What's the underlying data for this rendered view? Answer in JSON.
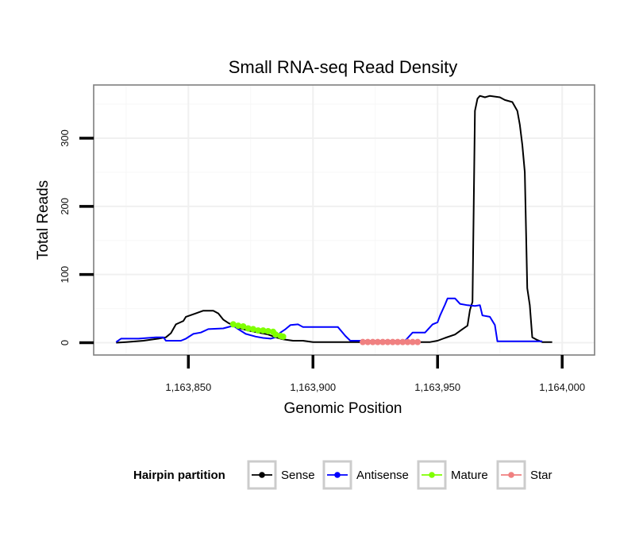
{
  "chart_data": {
    "type": "line",
    "title": "Small RNA-seq Read Density",
    "xlabel": "Genomic Position",
    "ylabel": "Total Reads",
    "xlim": [
      1163812,
      1164013
    ],
    "ylim": [
      -18,
      378
    ],
    "x_ticks": [
      1163850,
      1163900,
      1163950,
      1164000
    ],
    "x_tick_labels": [
      "1,163,850",
      "1,163,900",
      "1,163,950",
      "1,164,000"
    ],
    "y_ticks": [
      0,
      100,
      200,
      300
    ],
    "y_tick_labels": [
      "0",
      "100",
      "200",
      "300"
    ],
    "grid": true,
    "legend_position": "bottom",
    "legend_title": "Hairpin partition",
    "series": [
      {
        "name": "Sense",
        "color": "#000000",
        "points": [
          [
            1163821,
            0
          ],
          [
            1163825,
            1
          ],
          [
            1163832,
            3
          ],
          [
            1163838,
            6
          ],
          [
            1163841,
            8
          ],
          [
            1163843,
            14
          ],
          [
            1163845,
            27
          ],
          [
            1163848,
            32
          ],
          [
            1163849,
            38
          ],
          [
            1163853,
            43
          ],
          [
            1163856,
            47
          ],
          [
            1163860,
            47
          ],
          [
            1163862,
            43
          ],
          [
            1163864,
            34
          ],
          [
            1163866,
            29
          ],
          [
            1163870,
            22
          ],
          [
            1163874,
            18
          ],
          [
            1163878,
            15
          ],
          [
            1163882,
            12
          ],
          [
            1163885,
            8
          ],
          [
            1163888,
            5
          ],
          [
            1163892,
            3
          ],
          [
            1163896,
            3
          ],
          [
            1163900,
            1
          ],
          [
            1163920,
            1
          ],
          [
            1163943,
            1
          ],
          [
            1163947,
            1
          ],
          [
            1163950,
            3
          ],
          [
            1163953,
            7
          ],
          [
            1163957,
            12
          ],
          [
            1163960,
            20
          ],
          [
            1163962,
            25
          ],
          [
            1163963,
            48
          ],
          [
            1163964,
            60
          ],
          [
            1163965,
            340
          ],
          [
            1163966,
            358
          ],
          [
            1163967,
            362
          ],
          [
            1163969,
            360
          ],
          [
            1163971,
            362
          ],
          [
            1163975,
            360
          ],
          [
            1163977,
            356
          ],
          [
            1163980,
            353
          ],
          [
            1163982,
            340
          ],
          [
            1163983,
            320
          ],
          [
            1163984,
            290
          ],
          [
            1163985,
            250
          ],
          [
            1163986,
            80
          ],
          [
            1163987,
            55
          ],
          [
            1163988,
            8
          ],
          [
            1163990,
            4
          ],
          [
            1163992,
            1
          ],
          [
            1163996,
            1
          ]
        ]
      },
      {
        "name": "Antisense",
        "color": "#0000ff",
        "points": [
          [
            1163821,
            1
          ],
          [
            1163823,
            6
          ],
          [
            1163830,
            6
          ],
          [
            1163837,
            8
          ],
          [
            1163840,
            8
          ],
          [
            1163841,
            3
          ],
          [
            1163847,
            3
          ],
          [
            1163849,
            6
          ],
          [
            1163852,
            13
          ],
          [
            1163855,
            15
          ],
          [
            1163858,
            20
          ],
          [
            1163864,
            21
          ],
          [
            1163868,
            25
          ],
          [
            1163870,
            20
          ],
          [
            1163873,
            13
          ],
          [
            1163877,
            9
          ],
          [
            1163880,
            7
          ],
          [
            1163883,
            6
          ],
          [
            1163885,
            8
          ],
          [
            1163887,
            15
          ],
          [
            1163889,
            20
          ],
          [
            1163891,
            26
          ],
          [
            1163894,
            27
          ],
          [
            1163896,
            23
          ],
          [
            1163910,
            23
          ],
          [
            1163913,
            10
          ],
          [
            1163915,
            3
          ],
          [
            1163926,
            3
          ],
          [
            1163937,
            3
          ],
          [
            1163940,
            15
          ],
          [
            1163945,
            15
          ],
          [
            1163948,
            27
          ],
          [
            1163950,
            30
          ],
          [
            1163951,
            40
          ],
          [
            1163953,
            56
          ],
          [
            1163954,
            65
          ],
          [
            1163957,
            65
          ],
          [
            1163959,
            57
          ],
          [
            1163962,
            55
          ],
          [
            1163965,
            54
          ],
          [
            1163967,
            55
          ],
          [
            1163968,
            40
          ],
          [
            1163971,
            38
          ],
          [
            1163973,
            26
          ],
          [
            1163974,
            2
          ],
          [
            1163982,
            2
          ],
          [
            1163990,
            2
          ],
          [
            1163992,
            2
          ]
        ]
      },
      {
        "name": "Mature",
        "color": "#7fff00",
        "points": [
          [
            1163868,
            27
          ],
          [
            1163870,
            25
          ],
          [
            1163872,
            24
          ],
          [
            1163874,
            21
          ],
          [
            1163876,
            20
          ],
          [
            1163878,
            18
          ],
          [
            1163880,
            18
          ],
          [
            1163882,
            17
          ],
          [
            1163884,
            16
          ],
          [
            1163885,
            12
          ],
          [
            1163887,
            10
          ],
          [
            1163888,
            9
          ]
        ]
      },
      {
        "name": "Star",
        "color": "#f08080",
        "points": [
          [
            1163920,
            1
          ],
          [
            1163922,
            1
          ],
          [
            1163924,
            1
          ],
          [
            1163926,
            1
          ],
          [
            1163928,
            1
          ],
          [
            1163930,
            1
          ],
          [
            1163932,
            1
          ],
          [
            1163934,
            1
          ],
          [
            1163936,
            1
          ],
          [
            1163938,
            1
          ],
          [
            1163940,
            1
          ],
          [
            1163942,
            1
          ]
        ]
      }
    ]
  }
}
